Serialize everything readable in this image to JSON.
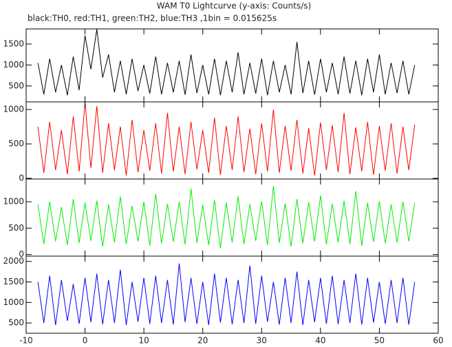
{
  "chart_data": {
    "type": "line",
    "title": "WAM T0 Lightcurve (y-axis: Counts/s)",
    "subtitle": "black:TH0, red:TH1, green:TH2, blue:TH3 ,1bin = 0.015625s",
    "xlim": [
      -10,
      60
    ],
    "xticks": [
      -10,
      0,
      10,
      20,
      30,
      40,
      50,
      60
    ],
    "x": [
      -8,
      -7,
      -6,
      -5,
      -4,
      -3,
      -2,
      -1,
      0,
      1,
      2,
      3,
      4,
      5,
      6,
      7,
      8,
      9,
      10,
      11,
      12,
      13,
      14,
      15,
      16,
      17,
      18,
      19,
      20,
      21,
      22,
      23,
      24,
      25,
      26,
      27,
      28,
      29,
      30,
      31,
      32,
      33,
      34,
      35,
      36,
      37,
      38,
      39,
      40,
      41,
      42,
      43,
      44,
      45,
      46,
      47,
      48,
      49,
      50,
      51,
      52,
      53,
      54,
      55,
      56
    ],
    "series": [
      {
        "color": "#000000",
        "ylim": [
          120,
          1860
        ],
        "yticks": [
          500,
          1000,
          1500
        ],
        "values": [
          1050,
          300,
          1150,
          350,
          1000,
          280,
          1200,
          400,
          1700,
          900,
          1850,
          700,
          1250,
          350,
          1100,
          300,
          1150,
          380,
          1000,
          320,
          1200,
          300,
          1050,
          350,
          1100,
          290,
          1250,
          330,
          1000,
          300,
          1150,
          280,
          1100,
          350,
          1300,
          300,
          1050,
          320,
          1150,
          280,
          1100,
          350,
          1000,
          300,
          1550,
          330,
          1100,
          290,
          1150,
          350,
          1050,
          300,
          1200,
          320,
          1100,
          280,
          1150,
          350,
          1250,
          300,
          1050,
          330,
          1100,
          300,
          1000
        ]
      },
      {
        "color": "#ff0000",
        "ylim": [
          -10,
          1110
        ],
        "yticks": [
          0,
          500,
          1000
        ],
        "values": [
          750,
          80,
          820,
          120,
          700,
          60,
          900,
          100,
          1100,
          150,
          1050,
          80,
          800,
          120,
          750,
          40,
          850,
          90,
          700,
          110,
          800,
          70,
          950,
          100,
          750,
          60,
          820,
          130,
          700,
          80,
          880,
          50,
          760,
          120,
          900,
          90,
          720,
          60,
          800,
          100,
          1000,
          80,
          760,
          110,
          850,
          70,
          730,
          40,
          810,
          120,
          770,
          90,
          950,
          60,
          740,
          100,
          820,
          50,
          760,
          110,
          800,
          70,
          750,
          120,
          780
        ]
      },
      {
        "color": "#00ee00",
        "ylim": [
          -30,
          1430
        ],
        "yticks": [
          0,
          500,
          1000
        ],
        "values": [
          950,
          200,
          1000,
          250,
          900,
          180,
          1050,
          220,
          980,
          260,
          1020,
          150,
          950,
          230,
          1100,
          200,
          920,
          250,
          1000,
          170,
          1150,
          210,
          960,
          240,
          1000,
          190,
          1250,
          220,
          940,
          180,
          1030,
          120,
          980,
          230,
          1100,
          200,
          950,
          260,
          1010,
          180,
          1300,
          220,
          970,
          150,
          1050,
          210,
          990,
          250,
          1120,
          190,
          960,
          230,
          1020,
          200,
          1200,
          170,
          980,
          240,
          1010,
          210,
          950,
          230,
          1000,
          250,
          980
        ]
      },
      {
        "color": "#0000ff",
        "ylim": [
          250,
          2130
        ],
        "yticks": [
          500,
          1000,
          1500,
          2000
        ],
        "values": [
          1500,
          500,
          1650,
          450,
          1550,
          550,
          1450,
          480,
          1600,
          520,
          1700,
          470,
          1550,
          500,
          1800,
          450,
          1500,
          530,
          1600,
          480,
          1650,
          500,
          1550,
          460,
          1950,
          520,
          1600,
          480,
          1500,
          450,
          1700,
          510,
          1600,
          470,
          1550,
          500,
          1900,
          480,
          1650,
          530,
          1500,
          460,
          1600,
          500,
          1750,
          450,
          1550,
          520,
          1600,
          480,
          1650,
          470,
          1550,
          500,
          1700,
          460,
          1600,
          510,
          1500,
          480,
          1550,
          500,
          1600,
          460,
          1500
        ]
      }
    ]
  }
}
